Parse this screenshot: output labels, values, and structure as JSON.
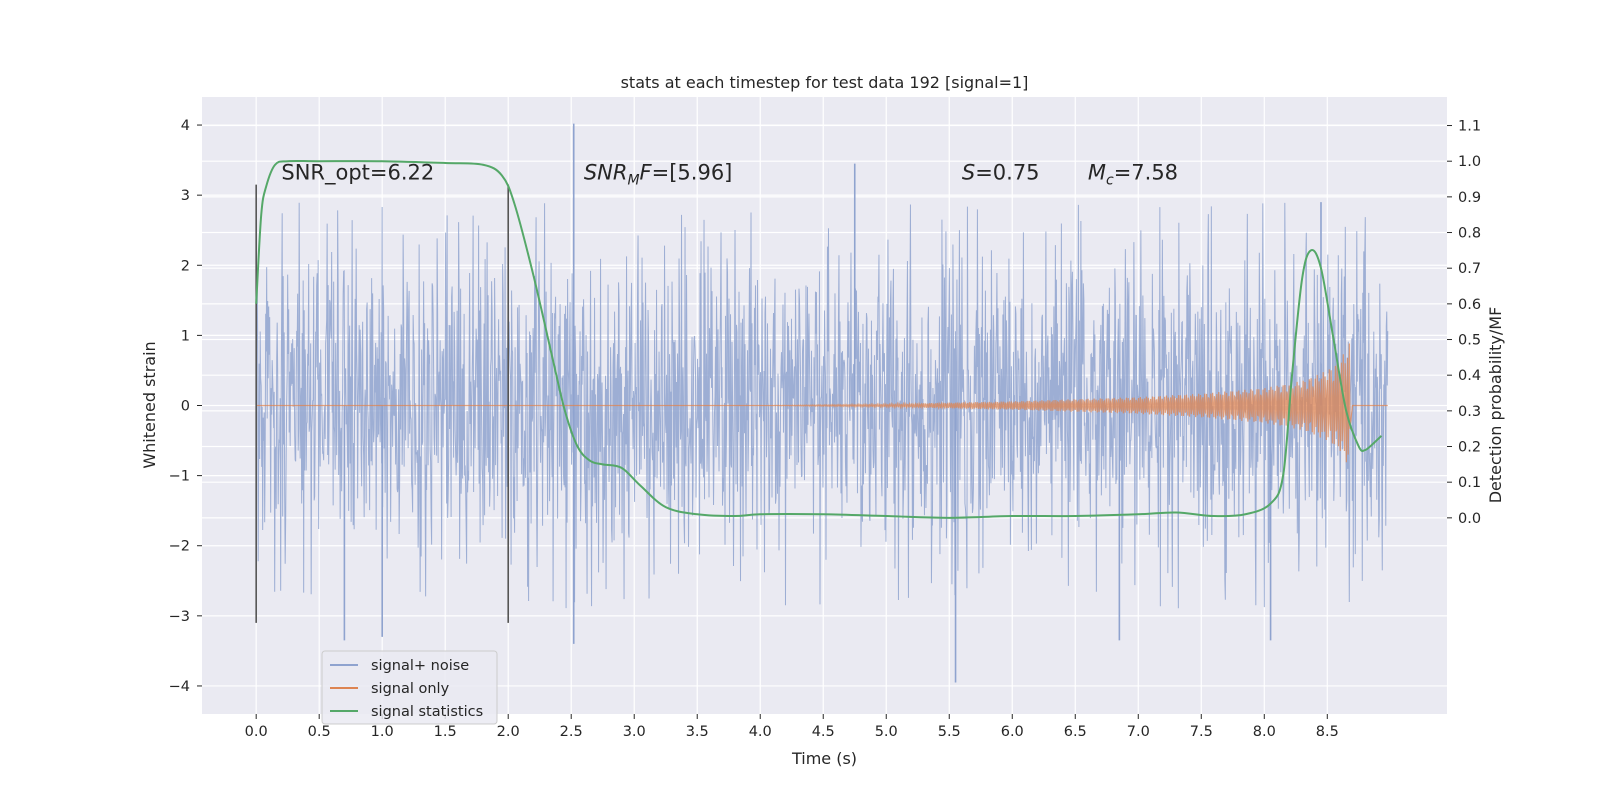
{
  "chart_data": {
    "type": "line",
    "title": "stats at each timestep for test data 192 [signal=1]",
    "xlabel": "Time (s)",
    "ylabel": "Whitened strain",
    "y2label": "Detection probability/MF",
    "xlim": [
      -0.43,
      9.45
    ],
    "ylim": [
      -4.4,
      4.4
    ],
    "y2lim": [
      -0.55,
      1.18
    ],
    "x_ticks": [
      0.0,
      0.5,
      1.0,
      1.5,
      2.0,
      2.5,
      3.0,
      3.5,
      4.0,
      4.5,
      5.0,
      5.5,
      6.0,
      6.5,
      7.0,
      7.5,
      8.0,
      8.5
    ],
    "x_tick_labels": [
      "0.0",
      "0.5",
      "1.0",
      "1.5",
      "2.0",
      "2.5",
      "3.0",
      "3.5",
      "4.0",
      "4.5",
      "5.0",
      "5.5",
      "6.0",
      "6.5",
      "7.0",
      "7.5",
      "8.0",
      "8.5"
    ],
    "y_ticks": [
      4,
      3,
      2,
      1,
      0,
      -1,
      -2,
      -3,
      -4
    ],
    "y_tick_labels": [
      "4",
      "3",
      "2",
      "1",
      "0",
      "−1",
      "−2",
      "−3",
      "−4"
    ],
    "y2_ticks": [
      1.1,
      1.0,
      0.9,
      0.8,
      0.7,
      0.6,
      0.5,
      0.4,
      0.3,
      0.2,
      0.1,
      0.0
    ],
    "y2_tick_labels": [
      "1.1",
      "1.0",
      "0.9",
      "0.8",
      "0.7",
      "0.6",
      "0.5",
      "0.4",
      "0.3",
      "0.2",
      "0.1",
      "0.0"
    ],
    "grid": true,
    "legend_position": "lower-left",
    "series": [
      {
        "name": "signal+ noise",
        "color": "#8fa3cf",
        "x_range": [
          0.0,
          8.98
        ],
        "typical_amplitude": 1.3,
        "spike_extremes": [
          {
            "x": 2.52,
            "y": 4.02
          },
          {
            "x": 5.55,
            "y": -3.95
          },
          {
            "x": 0.7,
            "y": -3.35
          },
          {
            "x": 6.85,
            "y": -3.35
          },
          {
            "x": 8.05,
            "y": -3.35
          },
          {
            "x": 2.52,
            "y": -3.4
          },
          {
            "x": 1.0,
            "y": -3.3
          },
          {
            "x": 4.75,
            "y": 3.45
          },
          {
            "x": 8.45,
            "y": 2.9
          }
        ]
      },
      {
        "name": "signal only",
        "color": "#dd8452",
        "x_range": [
          0.0,
          8.98
        ],
        "envelope": [
          [
            0.0,
            0.0
          ],
          [
            4.0,
            0.0
          ],
          [
            5.0,
            0.02
          ],
          [
            6.0,
            0.06
          ],
          [
            7.0,
            0.12
          ],
          [
            7.5,
            0.17
          ],
          [
            8.0,
            0.25
          ],
          [
            8.3,
            0.35
          ],
          [
            8.5,
            0.5
          ],
          [
            8.6,
            0.65
          ],
          [
            8.68,
            0.9
          ]
        ],
        "merger_x": 8.68
      },
      {
        "name": "signal statistics",
        "color": "#55a868",
        "axis": "right",
        "x": [
          0.0,
          0.04,
          0.08,
          0.15,
          0.25,
          0.5,
          1.0,
          1.5,
          1.8,
          1.95,
          2.05,
          2.2,
          2.35,
          2.45,
          2.55,
          2.65,
          2.75,
          2.9,
          3.05,
          3.25,
          3.5,
          3.8,
          4.0,
          4.5,
          5.0,
          5.5,
          6.0,
          6.5,
          7.0,
          7.3,
          7.6,
          7.85,
          8.05,
          8.15,
          8.22,
          8.3,
          8.37,
          8.45,
          8.55,
          8.65,
          8.75,
          8.8,
          8.87,
          8.93
        ],
        "y": [
          0.6,
          0.85,
          0.93,
          0.99,
          1.0,
          1.0,
          1.0,
          0.995,
          0.99,
          0.96,
          0.88,
          0.68,
          0.45,
          0.3,
          0.2,
          0.16,
          0.15,
          0.14,
          0.09,
          0.03,
          0.01,
          0.005,
          0.01,
          0.01,
          0.005,
          0.0,
          0.005,
          0.005,
          0.01,
          0.015,
          0.005,
          0.01,
          0.04,
          0.12,
          0.4,
          0.67,
          0.75,
          0.7,
          0.5,
          0.3,
          0.2,
          0.19,
          0.21,
          0.23
        ]
      }
    ],
    "vertical_lines": [
      {
        "x": 0.0,
        "ymin": -3.1,
        "ymax": 3.15
      },
      {
        "x": 2.0,
        "ymin": -3.1,
        "ymax": 3.15
      }
    ],
    "annotations": [
      {
        "id": "snr-opt",
        "text": "SNR_opt=6.22",
        "x": 0.2,
        "y": 3.22
      },
      {
        "id": "snr-mf",
        "prefix": "SNR",
        "sub": "M",
        "mid": "F",
        "rest": "=[5.96]",
        "x": 2.6,
        "y": 3.22
      },
      {
        "id": "s-val",
        "var": "S",
        "rest": "=0.75",
        "x": 5.6,
        "y": 3.22
      },
      {
        "id": "mc-val",
        "var": "M",
        "sub": "c",
        "rest": "=7.58",
        "x": 6.6,
        "y": 3.22
      }
    ]
  }
}
